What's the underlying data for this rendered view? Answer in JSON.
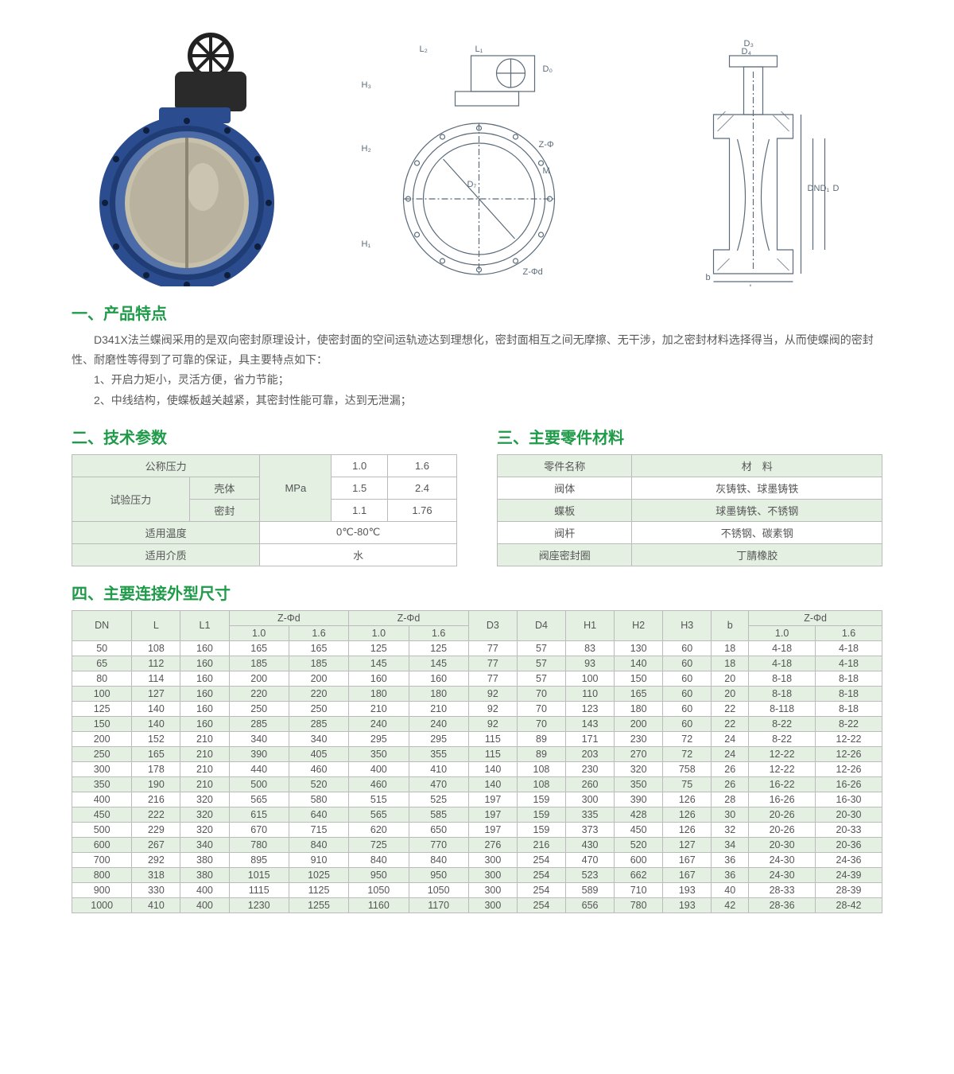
{
  "section1_title": "一、产品特点",
  "section2_title": "二、技术参数",
  "section3_title": "三、主要零件材料",
  "section4_title": "四、主要连接外型尺寸",
  "intro_p1": "D341X法兰蝶阀采用的是双向密封原理设计，使密封面的空间运轨迹达到理想化，密封面相互之间无摩擦、无干涉，加之密封材料选择得当，从而使蝶阀的密封性、耐磨性等得到了可靠的保证，具主要特点如下：",
  "intro_b1": "1、开启力矩小，灵活方便，省力节能；",
  "intro_b2": "2、中线结构，使蝶板越关越紧，其密封性能可靠，达到无泄漏；",
  "tech": {
    "headers": {
      "p_nominal": "公称压力",
      "p_test": "试验压力",
      "shell": "壳体",
      "seal": "密封",
      "unit": "MPa",
      "temp": "适用温度",
      "medium": "适用介质"
    },
    "vals": {
      "pn_10": "1.0",
      "pn_16": "1.6",
      "shell_10": "1.5",
      "shell_16": "2.4",
      "seal_10": "1.1",
      "seal_16": "1.76",
      "temp": "0℃-80℃",
      "medium": "水"
    }
  },
  "materials": {
    "h_part": "零件名称",
    "h_mat": "材　料",
    "rows": [
      [
        "阀体",
        "灰铸铁、球墨铸铁"
      ],
      [
        "蝶板",
        "球墨铸铁、不锈钢"
      ],
      [
        "阀杆",
        "不锈钢、碳素钢"
      ],
      [
        "阀座密封圈",
        "丁腈橡胶"
      ]
    ]
  },
  "dim": {
    "h": {
      "dn": "DN",
      "l": "L",
      "l1": "L1",
      "zphid": "Z-Φd",
      "d3": "D3",
      "d4": "D4",
      "h1": "H1",
      "h2": "H2",
      "h3": "H3",
      "b": "b",
      "c10": "1.0",
      "c16": "1.6"
    },
    "rows": [
      [
        "50",
        "108",
        "160",
        "165",
        "165",
        "125",
        "125",
        "77",
        "57",
        "83",
        "130",
        "60",
        "18",
        "4-18",
        "4-18"
      ],
      [
        "65",
        "112",
        "160",
        "185",
        "185",
        "145",
        "145",
        "77",
        "57",
        "93",
        "140",
        "60",
        "18",
        "4-18",
        "4-18"
      ],
      [
        "80",
        "114",
        "160",
        "200",
        "200",
        "160",
        "160",
        "77",
        "57",
        "100",
        "150",
        "60",
        "20",
        "8-18",
        "8-18"
      ],
      [
        "100",
        "127",
        "160",
        "220",
        "220",
        "180",
        "180",
        "92",
        "70",
        "110",
        "165",
        "60",
        "20",
        "8-18",
        "8-18"
      ],
      [
        "125",
        "140",
        "160",
        "250",
        "250",
        "210",
        "210",
        "92",
        "70",
        "123",
        "180",
        "60",
        "22",
        "8-118",
        "8-18"
      ],
      [
        "150",
        "140",
        "160",
        "285",
        "285",
        "240",
        "240",
        "92",
        "70",
        "143",
        "200",
        "60",
        "22",
        "8-22",
        "8-22"
      ],
      [
        "200",
        "152",
        "210",
        "340",
        "340",
        "295",
        "295",
        "115",
        "89",
        "171",
        "230",
        "72",
        "24",
        "8-22",
        "12-22"
      ],
      [
        "250",
        "165",
        "210",
        "390",
        "405",
        "350",
        "355",
        "115",
        "89",
        "203",
        "270",
        "72",
        "24",
        "12-22",
        "12-26"
      ],
      [
        "300",
        "178",
        "210",
        "440",
        "460",
        "400",
        "410",
        "140",
        "108",
        "230",
        "320",
        "758",
        "26",
        "12-22",
        "12-26"
      ],
      [
        "350",
        "190",
        "210",
        "500",
        "520",
        "460",
        "470",
        "140",
        "108",
        "260",
        "350",
        "75",
        "26",
        "16-22",
        "16-26"
      ],
      [
        "400",
        "216",
        "320",
        "565",
        "580",
        "515",
        "525",
        "197",
        "159",
        "300",
        "390",
        "126",
        "28",
        "16-26",
        "16-30"
      ],
      [
        "450",
        "222",
        "320",
        "615",
        "640",
        "565",
        "585",
        "197",
        "159",
        "335",
        "428",
        "126",
        "30",
        "20-26",
        "20-30"
      ],
      [
        "500",
        "229",
        "320",
        "670",
        "715",
        "620",
        "650",
        "197",
        "159",
        "373",
        "450",
        "126",
        "32",
        "20-26",
        "20-33"
      ],
      [
        "600",
        "267",
        "340",
        "780",
        "840",
        "725",
        "770",
        "276",
        "216",
        "430",
        "520",
        "127",
        "34",
        "20-30",
        "20-36"
      ],
      [
        "700",
        "292",
        "380",
        "895",
        "910",
        "840",
        "840",
        "300",
        "254",
        "470",
        "600",
        "167",
        "36",
        "24-30",
        "24-36"
      ],
      [
        "800",
        "318",
        "380",
        "1015",
        "1025",
        "950",
        "950",
        "300",
        "254",
        "523",
        "662",
        "167",
        "36",
        "24-30",
        "24-39"
      ],
      [
        "900",
        "330",
        "400",
        "1115",
        "1125",
        "1050",
        "1050",
        "300",
        "254",
        "589",
        "710",
        "193",
        "40",
        "28-33",
        "28-39"
      ],
      [
        "1000",
        "410",
        "400",
        "1230",
        "1255",
        "1160",
        "1170",
        "300",
        "254",
        "656",
        "780",
        "193",
        "42",
        "28-36",
        "28-42"
      ]
    ]
  },
  "diag_labels": {
    "l1": "L₁",
    "l2": "L₂",
    "d0": "D₀",
    "h1": "H₁",
    "h2": "H₂",
    "h3": "H₃",
    "d7": "D₇",
    "zphi": "Z-Φ",
    "zphid": "Z-Φd",
    "m": "M",
    "d": "D",
    "d1": "D₁",
    "dn": "DN",
    "d3": "D₃",
    "d4": "D₄",
    "b": "b",
    "l": "L"
  },
  "colors": {
    "valve_body": "#2b4d8f",
    "valve_disc": "#b9b29e",
    "actuator": "#2a2a2a"
  }
}
